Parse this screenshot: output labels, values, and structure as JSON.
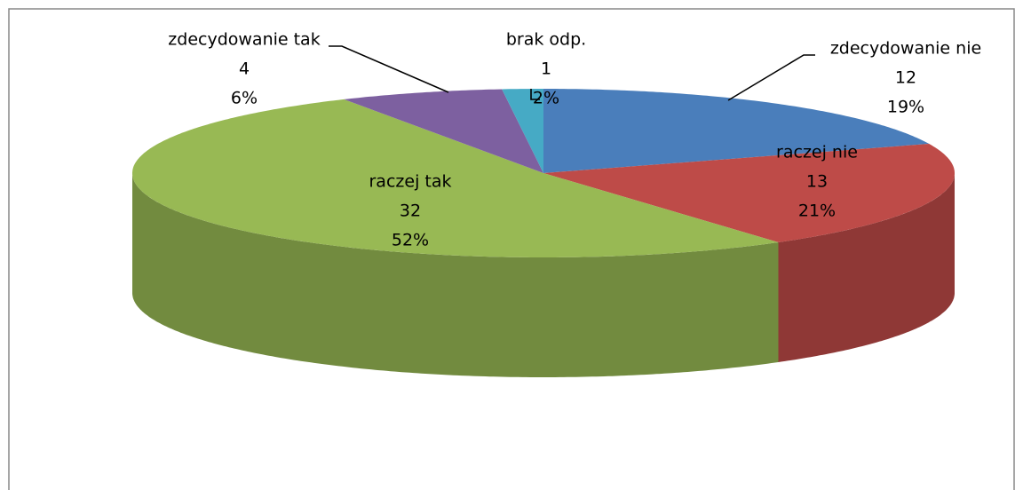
{
  "chart_data": {
    "type": "pie3d",
    "categories": [
      "zdecydowanie nie",
      "raczej nie",
      "raczej tak",
      "zdecydowanie tak",
      "brak odp."
    ],
    "values": [
      12,
      13,
      32,
      4,
      1
    ],
    "percent_labels": [
      "19%",
      "21%",
      "52%",
      "6%",
      "2%"
    ],
    "colors": [
      "#4a7ebb",
      "#be4b48",
      "#98b954",
      "#7d60a0",
      "#46aac5"
    ]
  }
}
